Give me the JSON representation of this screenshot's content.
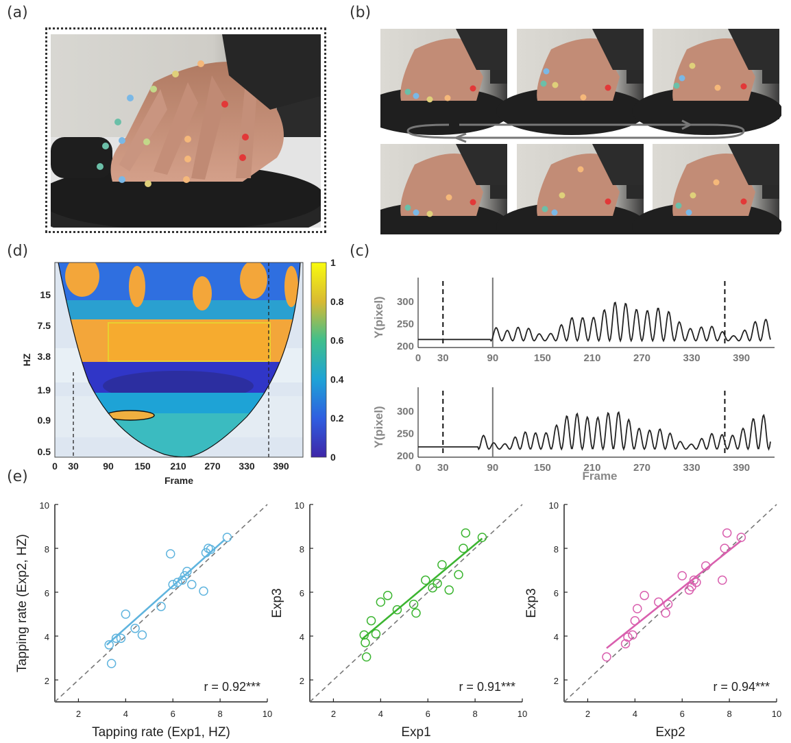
{
  "panels": {
    "a": "(a)",
    "b": "(b)",
    "c": "(c)",
    "d": "(d)",
    "e": "(e)"
  },
  "colors": {
    "blue": "#5fb4de",
    "green": "#3cb531",
    "pink": "#d95fae",
    "dashed": "#777777",
    "trace": "#222222"
  },
  "finger_icons": [
    "hand-photo-icon"
  ],
  "panel_d": {
    "xlabel": "Frame",
    "ylabel": "HZ",
    "xticks": [
      "0",
      "30",
      "90",
      "150",
      "210",
      "270",
      "330",
      "390"
    ],
    "yticks": [
      "15",
      "7.5",
      "3.8",
      "1.9",
      "0.9",
      "0.5"
    ],
    "colorbar_ticks": [
      "1",
      "0.8",
      "0.6",
      "0.4",
      "0.2",
      "0"
    ]
  },
  "panel_c": {
    "ylabel": "Y(pixel)",
    "xlabel": "Frame",
    "yticks": [
      "300",
      "250",
      "200"
    ],
    "xticks": [
      "0",
      "30",
      "90",
      "150",
      "210",
      "270",
      "330",
      "390"
    ]
  },
  "chart_data": [
    {
      "type": "scatter",
      "xlabel": "Tapping rate (Exp1, HZ)",
      "ylabel": "Tapping rate (Exp2, HZ)",
      "xlim": [
        1,
        10
      ],
      "ylim": [
        1,
        10
      ],
      "xticks": [
        2,
        4,
        6,
        8,
        10
      ],
      "yticks": [
        2,
        4,
        6,
        8,
        10
      ],
      "annotation": "r = 0.92***",
      "x": [
        3.3,
        3.4,
        3.6,
        3.8,
        4.0,
        4.4,
        4.7,
        5.5,
        5.9,
        6.0,
        6.2,
        6.4,
        6.5,
        6.6,
        6.8,
        7.3,
        7.4,
        7.5,
        7.6,
        8.3
      ],
      "y": [
        3.6,
        2.75,
        3.9,
        3.9,
        5.0,
        4.35,
        4.05,
        5.35,
        7.75,
        6.35,
        6.45,
        6.55,
        6.75,
        6.95,
        6.35,
        6.05,
        7.8,
        8.0,
        7.95,
        8.5
      ],
      "fit": [
        [
          3.2,
          3.6
        ],
        [
          8.2,
          8.4
        ]
      ]
    },
    {
      "type": "scatter",
      "xlabel": "Exp1",
      "ylabel": "Exp3",
      "xlim": [
        1,
        10
      ],
      "ylim": [
        1,
        10
      ],
      "xticks": [
        2,
        4,
        6,
        8,
        10
      ],
      "yticks": [
        2,
        4,
        6,
        8,
        10
      ],
      "annotation": "r = 0.91***",
      "x": [
        3.3,
        3.35,
        3.4,
        3.6,
        3.8,
        4.0,
        4.3,
        4.7,
        5.4,
        5.5,
        5.9,
        6.2,
        6.4,
        6.6,
        6.9,
        7.3,
        7.5,
        7.6,
        8.3
      ],
      "y": [
        4.05,
        3.7,
        3.05,
        4.7,
        4.1,
        5.55,
        5.85,
        5.2,
        5.45,
        5.05,
        6.55,
        6.2,
        6.4,
        7.25,
        6.1,
        6.8,
        8.0,
        8.7,
        8.5
      ],
      "fit": [
        [
          3.2,
          3.85
        ],
        [
          8.3,
          8.45
        ]
      ]
    },
    {
      "type": "scatter",
      "xlabel": "Exp2",
      "ylabel": "Exp3",
      "xlim": [
        1,
        10
      ],
      "ylim": [
        1,
        10
      ],
      "xticks": [
        2,
        4,
        6,
        8,
        10
      ],
      "yticks": [
        2,
        4,
        6,
        8,
        10
      ],
      "annotation": "r = 0.94***",
      "x": [
        2.8,
        3.6,
        3.7,
        3.9,
        4.0,
        4.1,
        4.4,
        5.0,
        5.4,
        5.3,
        6.0,
        6.3,
        6.4,
        6.5,
        6.6,
        7.0,
        7.7,
        7.8,
        7.9,
        8.5
      ],
      "y": [
        3.05,
        3.65,
        3.95,
        4.05,
        4.7,
        5.25,
        5.85,
        5.55,
        5.45,
        5.05,
        6.75,
        6.1,
        6.25,
        6.55,
        6.45,
        7.2,
        6.55,
        8.0,
        8.7,
        8.5
      ],
      "fit": [
        [
          2.8,
          3.45
        ],
        [
          8.5,
          8.35
        ]
      ]
    }
  ]
}
